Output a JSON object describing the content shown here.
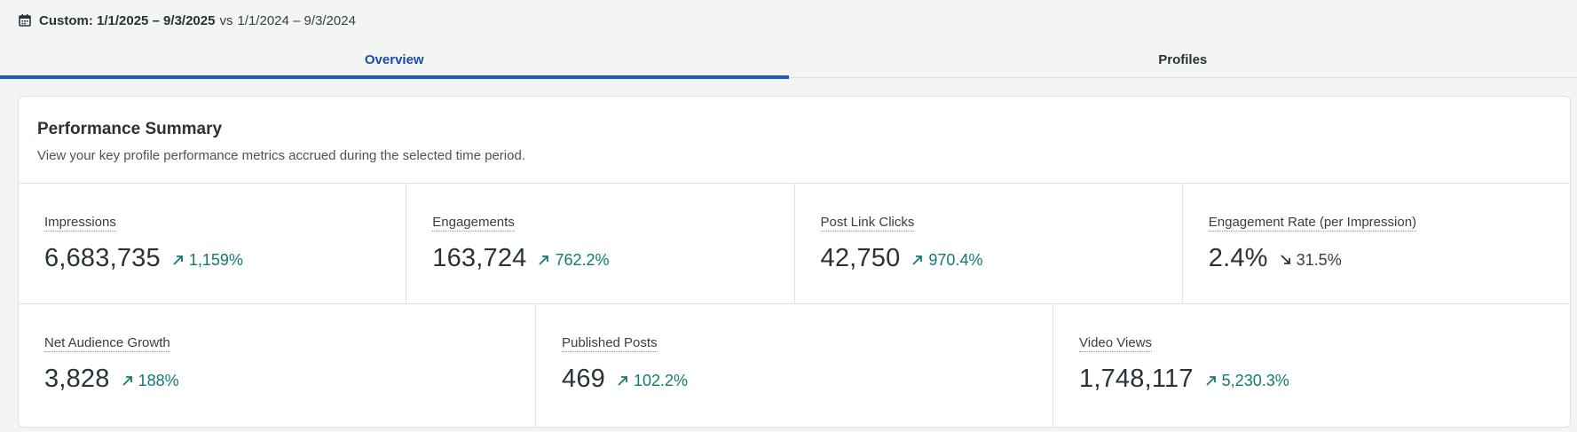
{
  "date_filter": {
    "range": "Custom: 1/1/2025 – 9/3/2025",
    "vs_label": "vs",
    "compare_range": "1/1/2024 – 9/3/2024",
    "icon": "calendar-icon"
  },
  "tabs": [
    {
      "label": "Overview",
      "active": true
    },
    {
      "label": "Profiles",
      "active": false
    }
  ],
  "summary": {
    "title": "Performance Summary",
    "subtitle": "View your key profile performance metrics accrued during the selected time period."
  },
  "metrics_row1": [
    {
      "label": "Impressions",
      "value": "6,683,735",
      "change": "1,159%",
      "direction": "up"
    },
    {
      "label": "Engagements",
      "value": "163,724",
      "change": "762.2%",
      "direction": "up"
    },
    {
      "label": "Post Link Clicks",
      "value": "42,750",
      "change": "970.4%",
      "direction": "up"
    },
    {
      "label": "Engagement Rate (per Impression)",
      "value": "2.4%",
      "change": "31.5%",
      "direction": "down"
    }
  ],
  "metrics_row2": [
    {
      "label": "Net Audience Growth",
      "value": "3,828",
      "change": "188%",
      "direction": "up"
    },
    {
      "label": "Published Posts",
      "value": "469",
      "change": "102.2%",
      "direction": "up"
    },
    {
      "label": "Video Views",
      "value": "1,748,117",
      "change": "5,230.3%",
      "direction": "up"
    }
  ],
  "colors": {
    "accent": "#2059c9",
    "positive": "#127a72",
    "neutral": "#364141"
  }
}
